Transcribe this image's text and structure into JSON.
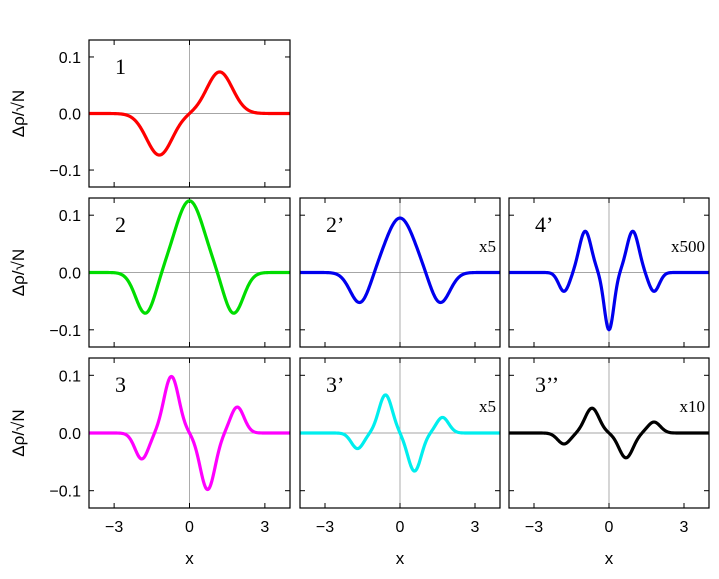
{
  "chart_data": [
    {
      "type": "line",
      "panel": "1",
      "label": "1",
      "scale_label": "",
      "color": "#ff0000",
      "xlim": [
        -4,
        4
      ],
      "ylim": [
        -0.13,
        0.13
      ],
      "x_ticks": [
        -3,
        0,
        3
      ],
      "y_ticks": [
        -0.1,
        0.0,
        0.1
      ],
      "y_tick_labels": [
        "−0.1",
        "0.0",
        "0.1"
      ],
      "x_tick_labels": [],
      "ylabel": "Δρ/√N",
      "xlabel": "",
      "components": [
        {
          "amp": 0.0735,
          "center": 1.2,
          "sigma": 0.72
        },
        {
          "amp": -0.0735,
          "center": -1.2,
          "sigma": 0.72
        }
      ]
    },
    {
      "type": "line",
      "panel": "2",
      "label": "2",
      "scale_label": "",
      "color": "#00dd00",
      "xlim": [
        -4,
        4
      ],
      "ylim": [
        -0.13,
        0.13
      ],
      "x_ticks": [
        -3,
        0,
        3
      ],
      "y_ticks": [
        -0.1,
        0.0,
        0.1
      ],
      "y_tick_labels": [
        "−0.1",
        "0.0",
        "0.1"
      ],
      "x_tick_labels": [],
      "ylabel": "Δρ/√N",
      "xlabel": "",
      "components": [
        {
          "amp": 0.125,
          "center": 0,
          "sigma": 0.8
        },
        {
          "amp": -0.072,
          "center": 1.75,
          "sigma": 0.55
        },
        {
          "amp": -0.072,
          "center": -1.75,
          "sigma": 0.55
        }
      ]
    },
    {
      "type": "line",
      "panel": "2'",
      "label": "2’",
      "scale_label": "x5",
      "color": "#0000ee",
      "xlim": [
        -4,
        4
      ],
      "ylim": [
        -0.13,
        0.13
      ],
      "x_ticks": [
        -3,
        0,
        3
      ],
      "y_ticks": [
        -0.1,
        0.0,
        0.1
      ],
      "y_tick_labels": [],
      "x_tick_labels": [],
      "ylabel": "",
      "xlabel": "",
      "components": [
        {
          "amp": 0.095,
          "center": 0,
          "sigma": 0.8
        },
        {
          "amp": -0.054,
          "center": 1.6,
          "sigma": 0.55
        },
        {
          "amp": -0.054,
          "center": -1.6,
          "sigma": 0.55
        }
      ]
    },
    {
      "type": "line",
      "panel": "4'",
      "label": "4’",
      "scale_label": "x500",
      "color": "#0000ee",
      "xlim": [
        -4,
        4
      ],
      "ylim": [
        -0.13,
        0.13
      ],
      "x_ticks": [
        -3,
        0,
        3
      ],
      "y_ticks": [
        -0.1,
        0.0,
        0.1
      ],
      "y_tick_labels": [],
      "x_tick_labels": [],
      "ylabel": "",
      "xlabel": "",
      "components": [
        {
          "amp": 0.072,
          "center": 0.95,
          "sigma": 0.34
        },
        {
          "amp": 0.072,
          "center": -0.95,
          "sigma": 0.34
        },
        {
          "amp": -0.1,
          "center": 0,
          "sigma": 0.27
        },
        {
          "amp": -0.033,
          "center": 1.8,
          "sigma": 0.3
        },
        {
          "amp": -0.033,
          "center": -1.8,
          "sigma": 0.3
        }
      ]
    },
    {
      "type": "line",
      "panel": "3",
      "label": "3",
      "scale_label": "",
      "color": "#ff00ff",
      "xlim": [
        -4,
        4
      ],
      "ylim": [
        -0.13,
        0.13
      ],
      "x_ticks": [
        -3,
        0,
        3
      ],
      "y_ticks": [
        -0.1,
        0.0,
        0.1
      ],
      "y_tick_labels": [
        "−0.1",
        "0.0",
        "0.1"
      ],
      "x_tick_labels": [
        "−3",
        "0",
        "3"
      ],
      "ylabel": "Δρ/√N",
      "xlabel": "x",
      "components": [
        {
          "amp": 0.098,
          "center": -0.72,
          "sigma": 0.42
        },
        {
          "amp": -0.098,
          "center": 0.72,
          "sigma": 0.42
        },
        {
          "amp": -0.045,
          "center": -1.9,
          "sigma": 0.38
        },
        {
          "amp": 0.045,
          "center": 1.9,
          "sigma": 0.38
        }
      ]
    },
    {
      "type": "line",
      "panel": "3'",
      "label": "3’",
      "scale_label": "x5",
      "color": "#00eeee",
      "xlim": [
        -4,
        4
      ],
      "ylim": [
        -0.13,
        0.13
      ],
      "x_ticks": [
        -3,
        0,
        3
      ],
      "y_ticks": [
        -0.1,
        0.0,
        0.1
      ],
      "y_tick_labels": [],
      "x_tick_labels": [
        "−3",
        "0",
        "3"
      ],
      "ylabel": "",
      "xlabel": "x",
      "components": [
        {
          "amp": 0.066,
          "center": -0.58,
          "sigma": 0.38
        },
        {
          "amp": -0.066,
          "center": 0.58,
          "sigma": 0.38
        },
        {
          "amp": -0.027,
          "center": -1.7,
          "sigma": 0.35
        },
        {
          "amp": 0.027,
          "center": 1.7,
          "sigma": 0.35
        }
      ]
    },
    {
      "type": "line",
      "panel": "3''",
      "label": "3’’",
      "scale_label": "x10",
      "color": "#000000",
      "xlim": [
        -4,
        4
      ],
      "ylim": [
        -0.13,
        0.13
      ],
      "x_ticks": [
        -3,
        0,
        3
      ],
      "y_ticks": [
        -0.1,
        0.0,
        0.1
      ],
      "y_tick_labels": [],
      "x_tick_labels": [
        "−3",
        "0",
        "3"
      ],
      "ylabel": "",
      "xlabel": "x",
      "components": [
        {
          "amp": 0.043,
          "center": -0.68,
          "sigma": 0.4
        },
        {
          "amp": -0.043,
          "center": 0.68,
          "sigma": 0.4
        },
        {
          "amp": -0.019,
          "center": -1.8,
          "sigma": 0.36
        },
        {
          "amp": 0.019,
          "center": 1.8,
          "sigma": 0.36
        }
      ]
    }
  ]
}
